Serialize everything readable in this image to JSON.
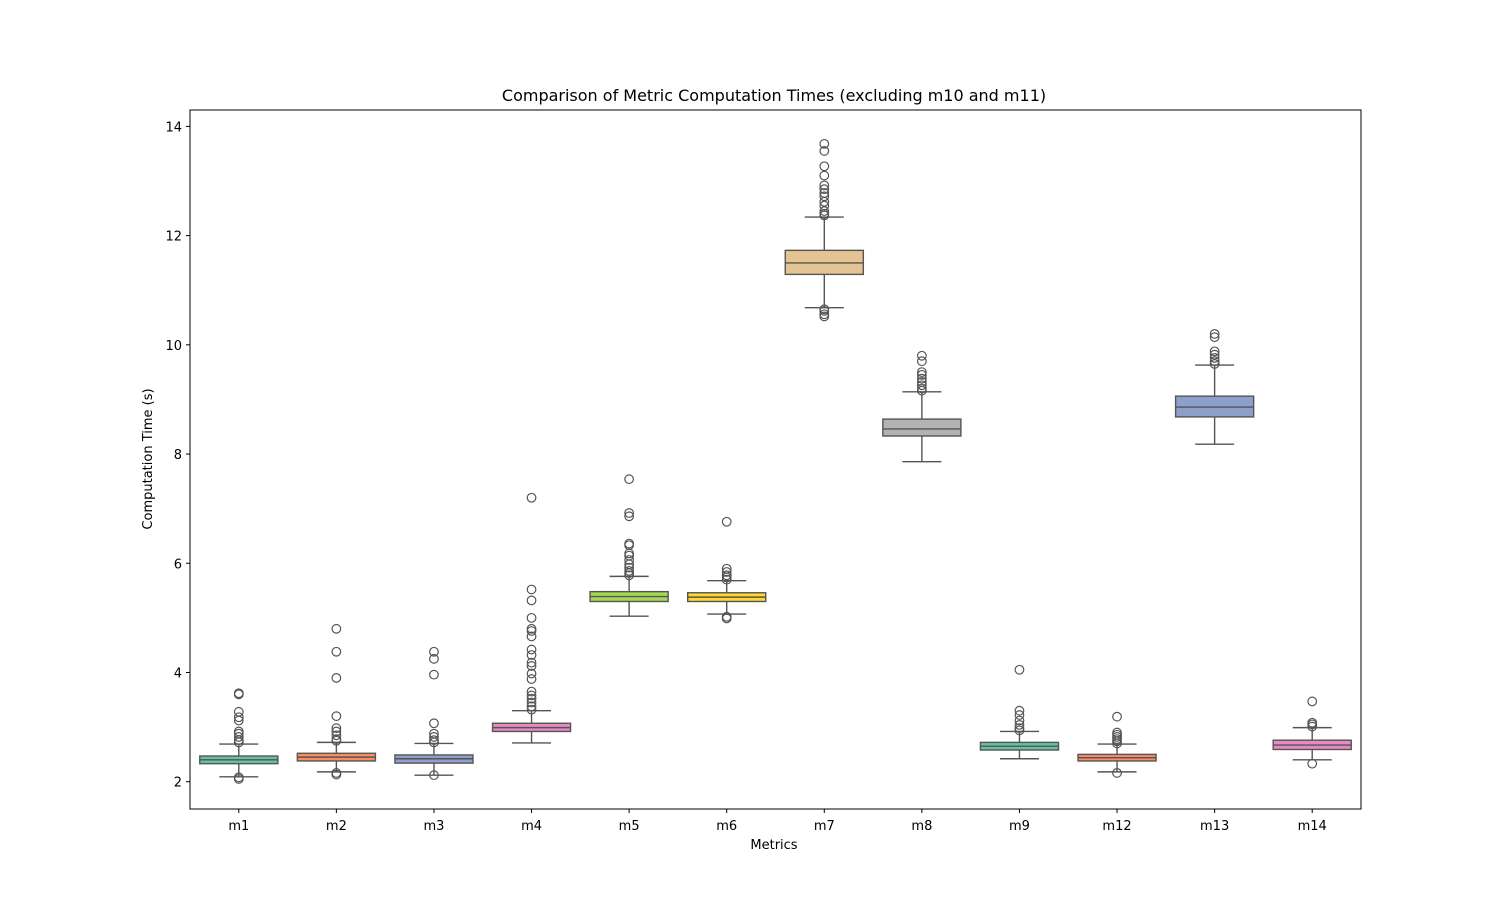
{
  "chart_data": {
    "type": "box",
    "title": "Comparison of Metric Computation Times (excluding m10 and m11)",
    "xlabel": "Metrics",
    "ylabel": "Computation Time (s)",
    "ylim": [
      1.5,
      14.3
    ],
    "yticks": [
      2,
      4,
      6,
      8,
      10,
      12,
      14
    ],
    "grid": false,
    "legend": "none",
    "categories": [
      "m1",
      "m2",
      "m3",
      "m4",
      "m5",
      "m6",
      "m7",
      "m8",
      "m9",
      "m12",
      "m13",
      "m14"
    ],
    "colors": [
      "#66c2a5",
      "#fc8d62",
      "#8da0cb",
      "#e78ac3",
      "#a6d854",
      "#ffd92f",
      "#e5c494",
      "#b3b3b3",
      "#66c2a5",
      "#fc8d62",
      "#8da0cb",
      "#e78ac3"
    ],
    "boxes": [
      {
        "label": "m1",
        "whislo": 2.09,
        "q1": 2.33,
        "med": 2.4,
        "q3": 2.47,
        "whishi": 2.69,
        "fliers": [
          2.05,
          2.08,
          2.72,
          2.76,
          2.82,
          2.88,
          2.92,
          3.12,
          3.18,
          3.28,
          3.6,
          3.62
        ]
      },
      {
        "label": "m2",
        "whislo": 2.18,
        "q1": 2.38,
        "med": 2.45,
        "q3": 2.52,
        "whishi": 2.72,
        "fliers": [
          2.13,
          2.16,
          2.75,
          2.78,
          2.85,
          2.92,
          2.98,
          3.2,
          3.9,
          4.38,
          4.8
        ]
      },
      {
        "label": "m3",
        "whislo": 2.12,
        "q1": 2.34,
        "med": 2.42,
        "q3": 2.49,
        "whishi": 2.7,
        "fliers": [
          2.12,
          2.72,
          2.76,
          2.82,
          2.88,
          3.07,
          3.96,
          4.25,
          4.38
        ]
      },
      {
        "label": "m4",
        "whislo": 2.71,
        "q1": 2.92,
        "med": 2.99,
        "q3": 3.07,
        "whishi": 3.3,
        "fliers": [
          3.32,
          3.38,
          3.45,
          3.52,
          3.58,
          3.65,
          3.88,
          3.98,
          4.12,
          4.18,
          4.32,
          4.42,
          4.66,
          4.76,
          4.8,
          5.0,
          5.32,
          5.52,
          7.2
        ]
      },
      {
        "label": "m5",
        "whislo": 5.03,
        "q1": 5.3,
        "med": 5.39,
        "q3": 5.48,
        "whishi": 5.76,
        "fliers": [
          5.78,
          5.82,
          5.86,
          5.92,
          5.98,
          6.06,
          6.14,
          6.18,
          6.33,
          6.36,
          6.86,
          6.92,
          7.54
        ]
      },
      {
        "label": "m6",
        "whislo": 5.07,
        "q1": 5.3,
        "med": 5.38,
        "q3": 5.46,
        "whishi": 5.68,
        "fliers": [
          4.99,
          5.02,
          5.7,
          5.74,
          5.78,
          5.84,
          5.9,
          6.76
        ]
      },
      {
        "label": "m7",
        "whislo": 10.68,
        "q1": 11.29,
        "med": 11.5,
        "q3": 11.73,
        "whishi": 12.34,
        "fliers": [
          10.52,
          10.56,
          10.62,
          10.65,
          12.37,
          12.4,
          12.45,
          12.55,
          12.62,
          12.72,
          12.78,
          12.85,
          12.92,
          13.1,
          13.27,
          13.55,
          13.68
        ]
      },
      {
        "label": "m8",
        "whislo": 7.86,
        "q1": 8.33,
        "med": 8.46,
        "q3": 8.64,
        "whishi": 9.14,
        "fliers": [
          9.16,
          9.2,
          9.26,
          9.32,
          9.38,
          9.45,
          9.5,
          9.7,
          9.8
        ]
      },
      {
        "label": "m9",
        "whislo": 2.42,
        "q1": 2.58,
        "med": 2.65,
        "q3": 2.72,
        "whishi": 2.92,
        "fliers": [
          2.94,
          2.98,
          3.04,
          3.12,
          3.22,
          3.3,
          4.05
        ]
      },
      {
        "label": "m12",
        "whislo": 2.18,
        "q1": 2.38,
        "med": 2.44,
        "q3": 2.5,
        "whishi": 2.69,
        "fliers": [
          2.16,
          2.7,
          2.74,
          2.78,
          2.82,
          2.86,
          2.9,
          3.19
        ]
      },
      {
        "label": "m13",
        "whislo": 8.18,
        "q1": 8.68,
        "med": 8.86,
        "q3": 9.06,
        "whishi": 9.63,
        "fliers": [
          9.65,
          9.7,
          9.76,
          9.82,
          9.88,
          10.14,
          10.2
        ]
      },
      {
        "label": "m14",
        "whislo": 2.4,
        "q1": 2.59,
        "med": 2.67,
        "q3": 2.76,
        "whishi": 2.99,
        "fliers": [
          2.33,
          3.01,
          3.05,
          3.08,
          3.47
        ]
      }
    ]
  }
}
